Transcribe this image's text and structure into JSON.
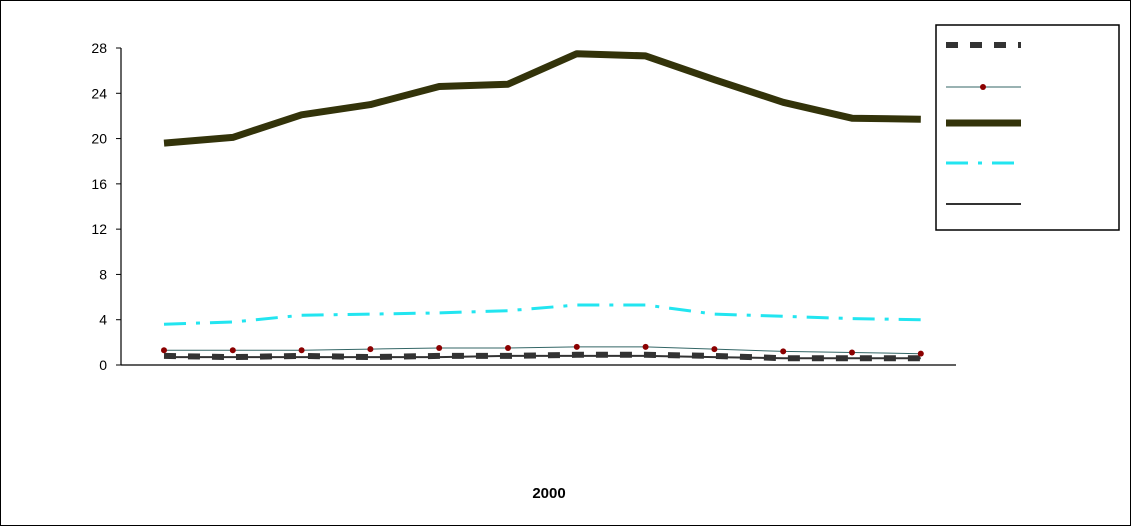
{
  "chart_data": {
    "type": "line",
    "xlabel": "2000",
    "ylabel": "",
    "ylim": [
      0,
      28
    ],
    "yticks": [
      0,
      4,
      8,
      12,
      16,
      20,
      24,
      28
    ],
    "x": [
      1,
      2,
      3,
      4,
      5,
      6,
      7,
      8,
      9,
      10,
      11,
      12
    ],
    "grid": false,
    "legend": "top-right",
    "series": [
      {
        "style": "dashed-dark-gray-thick",
        "color": "#333333",
        "values": [
          0.8,
          0.7,
          0.8,
          0.7,
          0.8,
          0.8,
          0.9,
          0.9,
          0.8,
          0.6,
          0.6,
          0.6
        ]
      },
      {
        "style": "thin-line-red-dots",
        "color": "#336666",
        "marker_color": "#8b0000",
        "values": [
          1.3,
          1.3,
          1.3,
          1.4,
          1.5,
          1.5,
          1.6,
          1.6,
          1.4,
          1.2,
          1.1,
          1.0
        ]
      },
      {
        "style": "solid-olive-thick",
        "color": "#33330a",
        "values": [
          19.6,
          20.1,
          22.1,
          23.0,
          24.6,
          24.8,
          27.5,
          27.3,
          25.2,
          23.2,
          21.8,
          21.7
        ]
      },
      {
        "style": "dash-dot-cyan",
        "color": "#22e5f0",
        "values": [
          3.6,
          3.8,
          4.4,
          4.5,
          4.6,
          4.8,
          5.3,
          5.3,
          4.5,
          4.3,
          4.1,
          4.0
        ]
      },
      {
        "style": "solid-dark-thin",
        "color": "#333333",
        "values": [
          0.7,
          0.7,
          0.7,
          0.7,
          0.7,
          0.8,
          0.8,
          0.8,
          0.7,
          0.6,
          0.6,
          0.6
        ]
      }
    ]
  }
}
